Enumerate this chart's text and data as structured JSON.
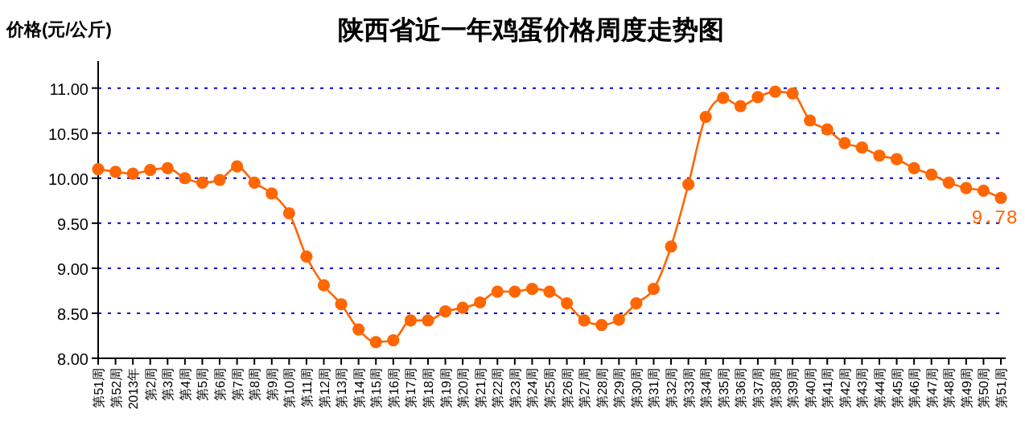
{
  "chart_data": {
    "type": "line",
    "title": "陕西省近一年鸡蛋价格周度走势图",
    "ylabel": "价格(元/公斤)",
    "categories": [
      "第51周",
      "第52周",
      "2013年",
      "第2周",
      "第3周",
      "第4周",
      "第5周",
      "第6周",
      "第7周",
      "第8周",
      "第9周",
      "第10周",
      "第11周",
      "第12周",
      "第13周",
      "第14周",
      "第15周",
      "第16周",
      "第17周",
      "第18周",
      "第19周",
      "第20周",
      "第21周",
      "第22周",
      "第23周",
      "第24周",
      "第25周",
      "第26周",
      "第27周",
      "第28周",
      "第29周",
      "第30周",
      "第31周",
      "第32周",
      "第33周",
      "第34周",
      "第35周",
      "第36周",
      "第37周",
      "第38周",
      "第39周",
      "第40周",
      "第41周",
      "第42周",
      "第43周",
      "第44周",
      "第45周",
      "第46周",
      "第47周",
      "第48周",
      "第49周",
      "第50周",
      "第51周"
    ],
    "series": [
      {
        "color": "#ff6600",
        "values": [
          10.1,
          10.07,
          10.05,
          10.09,
          10.11,
          10.0,
          9.95,
          9.98,
          10.13,
          9.95,
          9.83,
          9.61,
          9.13,
          8.81,
          8.6,
          8.32,
          8.18,
          8.2,
          8.42,
          8.42,
          8.52,
          8.56,
          8.62,
          8.74,
          8.74,
          8.77,
          8.74,
          8.61,
          8.42,
          8.37,
          8.43,
          8.61,
          8.77,
          9.24,
          9.93,
          10.68,
          10.89,
          10.8,
          10.9,
          10.96,
          10.94,
          10.64,
          10.54,
          10.39,
          10.34,
          10.25,
          10.21,
          10.11,
          10.04,
          9.95,
          9.89,
          9.86,
          9.78
        ],
        "value_labels": [
          null,
          null,
          null,
          null,
          null,
          null,
          null,
          null,
          null,
          null,
          null,
          null,
          null,
          null,
          null,
          null,
          null,
          null,
          null,
          null,
          null,
          null,
          null,
          null,
          null,
          null,
          null,
          null,
          null,
          null,
          null,
          null,
          null,
          null,
          null,
          null,
          null,
          null,
          null,
          null,
          null,
          null,
          null,
          null,
          null,
          null,
          null,
          null,
          null,
          null,
          null,
          null,
          "9.78"
        ]
      }
    ],
    "ylim": [
      8,
      11.3
    ],
    "yticks": [
      {
        "value": 8,
        "label": "8.00"
      },
      {
        "value": 8.5,
        "label": "8.50"
      },
      {
        "value": 9,
        "label": "9.00"
      },
      {
        "value": 9.5,
        "label": "9.50"
      },
      {
        "value": 10,
        "label": "10.00"
      },
      {
        "value": 10.5,
        "label": "10.50"
      },
      {
        "value": 11,
        "label": "11.00"
      }
    ],
    "grid": "y",
    "marker": "circle",
    "line_style": "solid"
  }
}
